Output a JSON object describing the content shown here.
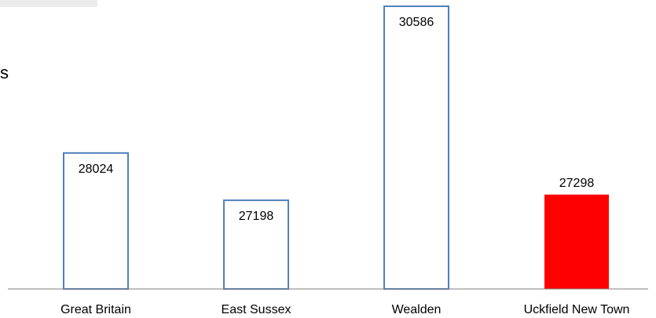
{
  "edge_text": "s",
  "colors": {
    "outline_bar_stroke": "#4f81bd",
    "outline_bar_fill": "#ffffff",
    "highlight_bar_fill": "#ff0000",
    "axis": "#7f7f7f",
    "text": "#000000"
  },
  "chart_data": {
    "type": "bar",
    "categories": [
      "Great Britain",
      "East Sussex",
      "Wealden",
      "Uckfield New Town"
    ],
    "values": [
      28024,
      27198,
      30586,
      27298
    ],
    "value_labels": [
      "28024",
      "27198",
      "30586",
      "27298"
    ],
    "highlighted_category": "Uckfield New Town",
    "title": "",
    "xlabel": "",
    "ylabel": "",
    "grid": false,
    "legend": "none"
  }
}
